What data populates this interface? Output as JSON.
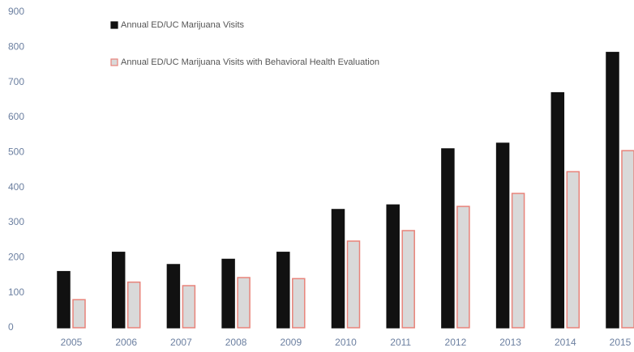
{
  "chart_data": {
    "type": "bar",
    "categories": [
      "2005",
      "2006",
      "2007",
      "2008",
      "2009",
      "2010",
      "2011",
      "2012",
      "2013",
      "2014",
      "2015"
    ],
    "series": [
      {
        "name": "Annual ED/UC Marijuana Visits",
        "color": "#111111",
        "edgecolor": "#111111",
        "values": [
          160,
          215,
          180,
          195,
          215,
          337,
          350,
          510,
          526,
          670,
          785
        ]
      },
      {
        "name": "Annual ED/UC Marijuana Visits with Behavioral Health Evaluation",
        "color": "#d9d9d9",
        "edgecolor": "#e8837a",
        "values": [
          80,
          130,
          120,
          143,
          140,
          247,
          277,
          346,
          383,
          445,
          505
        ]
      }
    ],
    "ylim": [
      0,
      900
    ],
    "yticks": [
      0,
      100,
      200,
      300,
      400,
      500,
      600,
      700,
      800,
      900
    ],
    "grid": false,
    "legend": "upper-left"
  }
}
